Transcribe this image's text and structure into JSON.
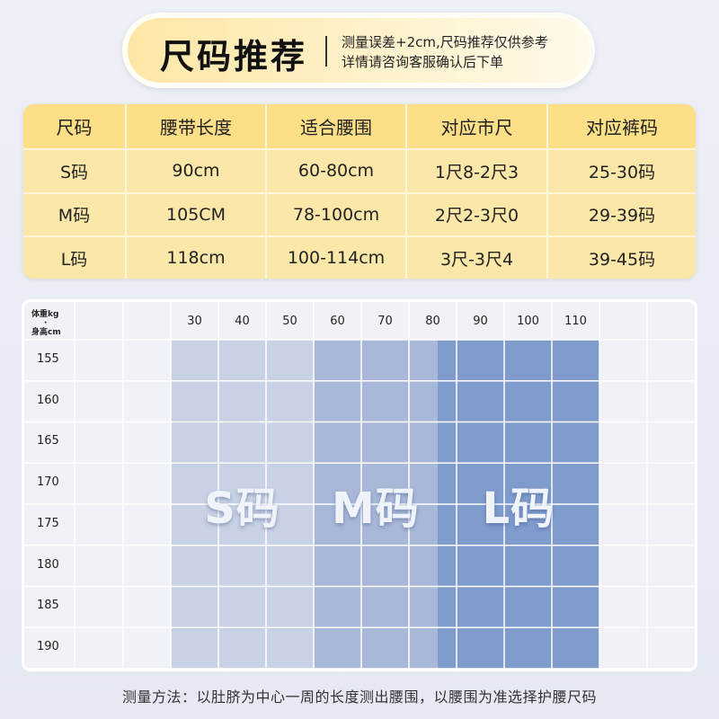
{
  "header": {
    "title": "尺码推荐",
    "note_line1": "测量误差+2cm,尺码推荐仅供参考",
    "note_line2": "详情请咨询客服确认后下单"
  },
  "size_table": {
    "headers": [
      "尺码",
      "腰带长度",
      "适合腰围",
      "对应市尺",
      "对应裤码"
    ],
    "rows": [
      [
        "S码",
        "90cm",
        "60-80cm",
        "1尺8-2尺3",
        "25-30码"
      ],
      [
        "M码",
        "105CM",
        "78-100cm",
        "2尺2-3尺0",
        "29-39码"
      ],
      [
        "L码",
        "118cm",
        "100-114cm",
        "3尺-3尺4",
        "39-45码"
      ]
    ]
  },
  "chart": {
    "axis_label_weight": "体重kg",
    "axis_label_height": "身高cm",
    "weights": [
      "30",
      "40",
      "50",
      "60",
      "70",
      "80",
      "90",
      "100",
      "110"
    ],
    "heights": [
      "155",
      "160",
      "165",
      "170",
      "175",
      "180",
      "185",
      "190"
    ],
    "bands": [
      {
        "label": "S码",
        "from_weight": 25,
        "to_weight": 55,
        "color": "#c9d2e4"
      },
      {
        "label": "M码",
        "from_weight": 55,
        "to_weight": 81,
        "color": "#a9b8d8"
      },
      {
        "label": "L码",
        "from_weight": 81,
        "to_weight": 115,
        "color": "#7f9ccd"
      }
    ]
  },
  "footer": {
    "text": "测量方法：以肚脐为中心一周的长度测出腰围，以腰围为准选择护腰尺码"
  }
}
